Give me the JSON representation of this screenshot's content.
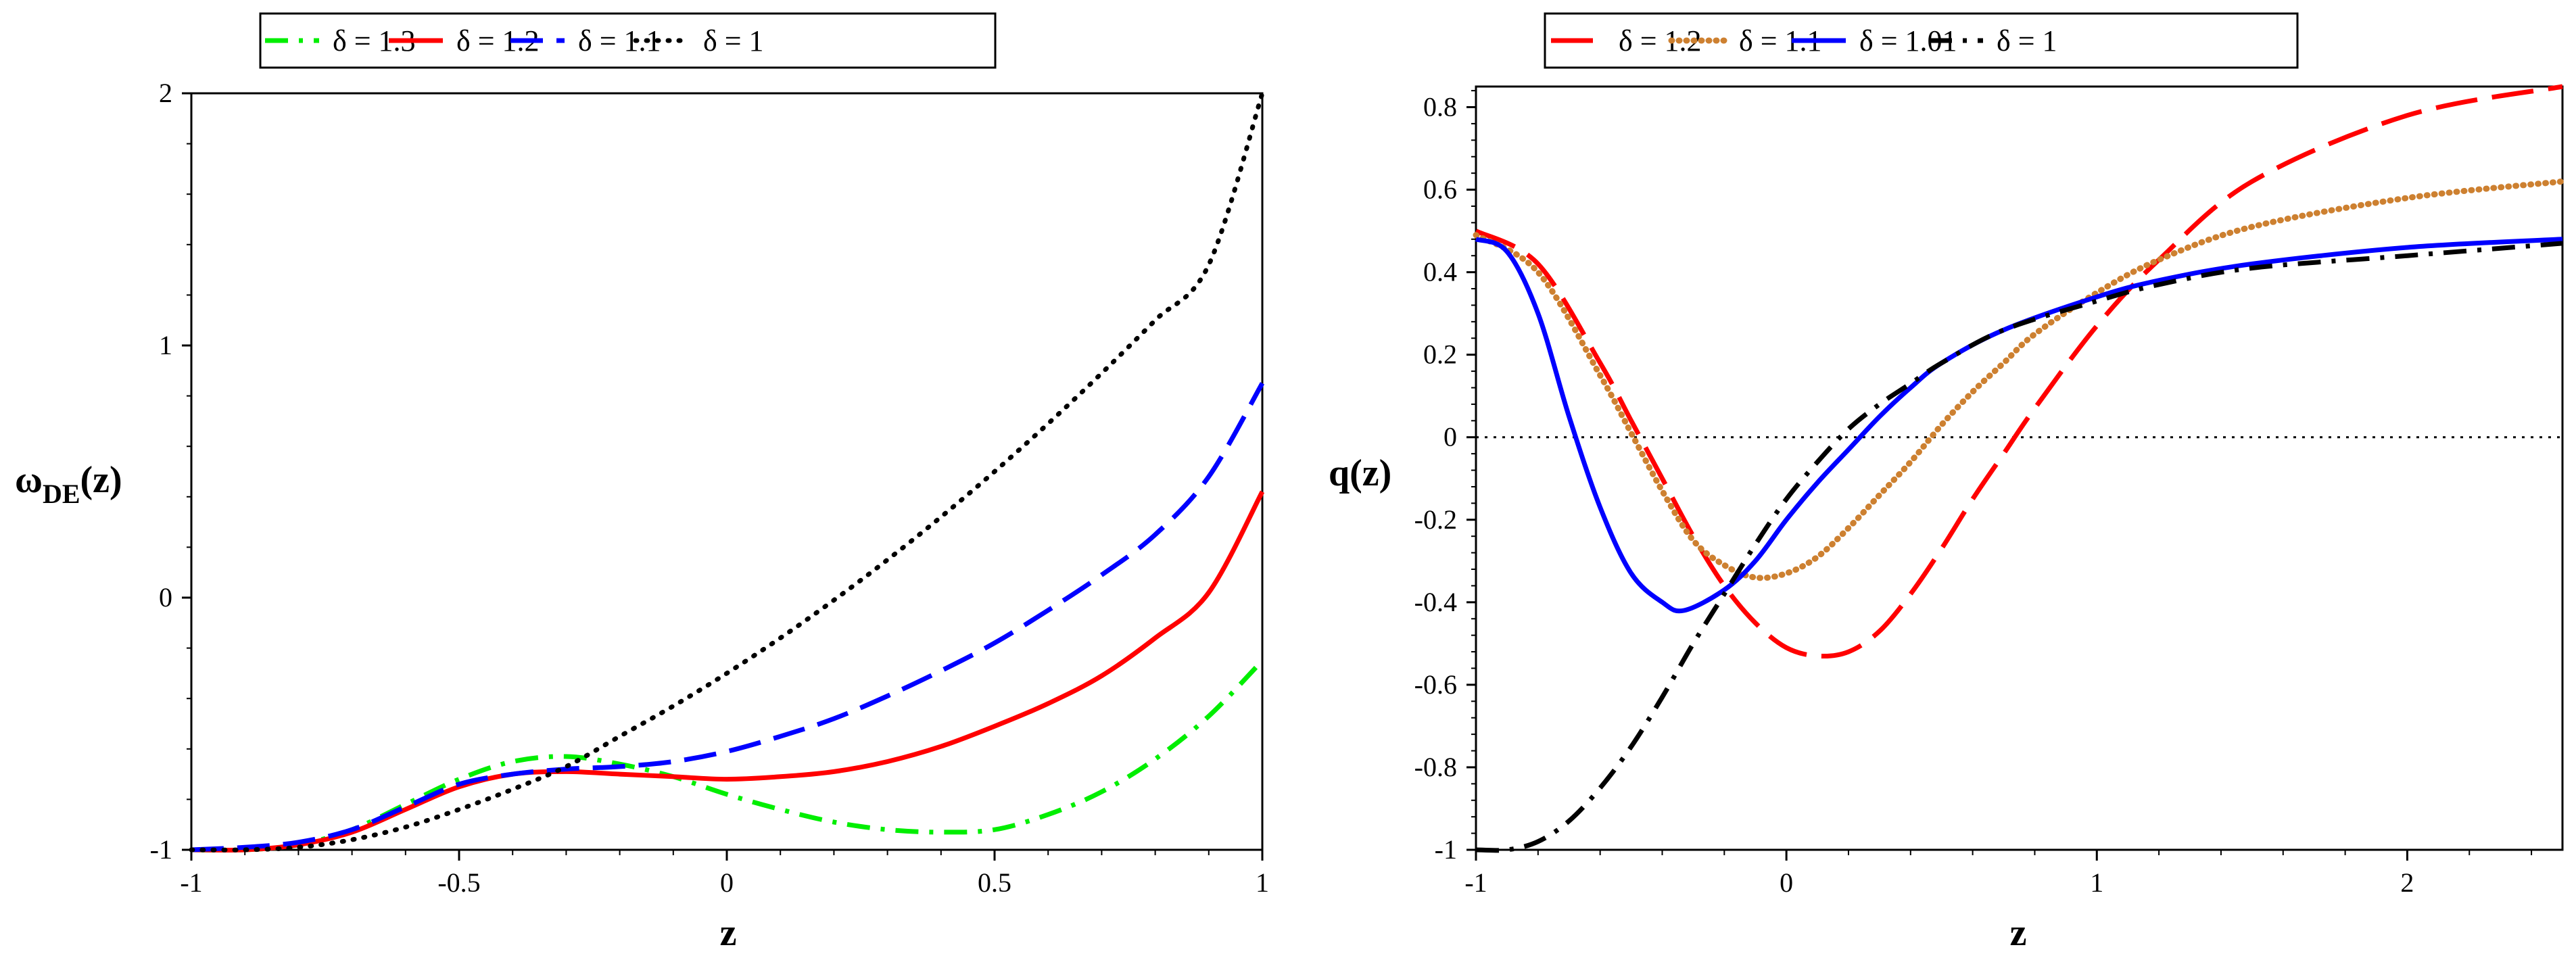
{
  "chart_data": [
    {
      "type": "line",
      "xlabel": "z",
      "ylabel": "ω",
      "ylabel_sub": "DE",
      "ylabel_tail": "(z)",
      "xlim": [
        -1,
        1
      ],
      "ylim": [
        -1,
        2
      ],
      "xticks": [
        -1,
        -0.5,
        0,
        0.5,
        1
      ],
      "xtick_labels": [
        "-1",
        "-0.5",
        "0",
        "0.5",
        "1"
      ],
      "yticks": [
        -1,
        0,
        1,
        2
      ],
      "ytick_labels": [
        "-1",
        "0",
        "1",
        "2"
      ],
      "legend_location": "top-center",
      "series": [
        {
          "name": "δ = 1.3",
          "color": "#00ee00",
          "style": "dashdot",
          "x": [
            -1,
            -0.9,
            -0.8,
            -0.7,
            -0.6,
            -0.5,
            -0.4,
            -0.3,
            -0.2,
            -0.1,
            0,
            0.1,
            0.2,
            0.3,
            0.4,
            0.5,
            0.6,
            0.7,
            0.8,
            0.9,
            1
          ],
          "y": [
            -1,
            -1,
            -0.98,
            -0.92,
            -0.82,
            -0.72,
            -0.65,
            -0.63,
            -0.66,
            -0.71,
            -0.78,
            -0.84,
            -0.89,
            -0.92,
            -0.93,
            -0.92,
            -0.86,
            -0.77,
            -0.64,
            -0.47,
            -0.25
          ]
        },
        {
          "name": "δ = 1.2",
          "color": "#ff0000",
          "style": "solid",
          "x": [
            -1,
            -0.9,
            -0.8,
            -0.7,
            -0.6,
            -0.5,
            -0.4,
            -0.3,
            -0.2,
            -0.1,
            0,
            0.1,
            0.2,
            0.3,
            0.4,
            0.5,
            0.6,
            0.7,
            0.8,
            0.9,
            1
          ],
          "y": [
            -1,
            -1,
            -0.98,
            -0.93,
            -0.84,
            -0.75,
            -0.7,
            -0.69,
            -0.7,
            -0.71,
            -0.72,
            -0.71,
            -0.69,
            -0.65,
            -0.59,
            -0.51,
            -0.42,
            -0.31,
            -0.16,
            0.02,
            0.42
          ]
        },
        {
          "name": "δ = 1.1",
          "color": "#0000ff",
          "style": "dash",
          "x": [
            -1,
            -0.9,
            -0.8,
            -0.7,
            -0.6,
            -0.5,
            -0.4,
            -0.3,
            -0.2,
            -0.1,
            0,
            0.1,
            0.2,
            0.3,
            0.4,
            0.5,
            0.6,
            0.7,
            0.8,
            0.9,
            1
          ],
          "y": [
            -1,
            -0.99,
            -0.97,
            -0.92,
            -0.83,
            -0.74,
            -0.7,
            -0.68,
            -0.67,
            -0.65,
            -0.61,
            -0.55,
            -0.48,
            -0.39,
            -0.29,
            -0.18,
            -0.05,
            0.09,
            0.25,
            0.48,
            0.85
          ]
        },
        {
          "name": "δ = 1",
          "color": "#000000",
          "style": "dot",
          "x": [
            -1,
            -0.9,
            -0.8,
            -0.7,
            -0.6,
            -0.5,
            -0.4,
            -0.3,
            -0.2,
            -0.1,
            0,
            0.1,
            0.2,
            0.3,
            0.4,
            0.5,
            0.6,
            0.7,
            0.8,
            0.9,
            1
          ],
          "y": [
            -1,
            -1,
            -0.99,
            -0.96,
            -0.91,
            -0.84,
            -0.76,
            -0.67,
            -0.55,
            -0.43,
            -0.3,
            -0.16,
            -0.01,
            0.15,
            0.32,
            0.5,
            0.69,
            0.89,
            1.1,
            1.32,
            2
          ]
        }
      ]
    },
    {
      "type": "line",
      "xlabel": "z",
      "ylabel": "q(z)",
      "xlim": [
        -1,
        2.5
      ],
      "ylim": [
        -1,
        0.85
      ],
      "xticks": [
        -1,
        0,
        1,
        2
      ],
      "xtick_labels": [
        "-1",
        "0",
        "1",
        "2"
      ],
      "yticks": [
        -1,
        -0.8,
        -0.6,
        -0.4,
        -0.2,
        0,
        0.2,
        0.4,
        0.6,
        0.8
      ],
      "ytick_labels": [
        "-1",
        "-0.8",
        "-0.6",
        "-0.4",
        "-0.2",
        "0",
        "0.2",
        "0.4",
        "0.6",
        "0.8"
      ],
      "reference_line_y": 0,
      "legend_location": "top-center",
      "series": [
        {
          "name": "δ = 1.2",
          "color": "#ff0000",
          "style": "longdash",
          "x": [
            -1,
            -0.8,
            -0.6,
            -0.5,
            -0.4,
            -0.3,
            -0.2,
            -0.1,
            0,
            0.1,
            0.2,
            0.3,
            0.4,
            0.5,
            0.6,
            0.7,
            0.8,
            1,
            1.2,
            1.5,
            2,
            2.5
          ],
          "y": [
            0.5,
            0.42,
            0.18,
            0.04,
            -0.1,
            -0.24,
            -0.36,
            -0.45,
            -0.51,
            -0.53,
            -0.52,
            -0.47,
            -0.38,
            -0.27,
            -0.15,
            -0.04,
            0.07,
            0.27,
            0.43,
            0.62,
            0.78,
            0.85
          ]
        },
        {
          "name": "δ = 1.1",
          "color": "#cd8030",
          "style": "dotted",
          "x": [
            -1,
            -0.8,
            -0.6,
            -0.5,
            -0.4,
            -0.3,
            -0.2,
            -0.1,
            0,
            0.1,
            0.2,
            0.3,
            0.4,
            0.5,
            0.6,
            0.7,
            0.8,
            1,
            1.2,
            1.5,
            2,
            2.5
          ],
          "y": [
            0.49,
            0.4,
            0.15,
            0.01,
            -0.13,
            -0.25,
            -0.31,
            -0.34,
            -0.33,
            -0.29,
            -0.22,
            -0.14,
            -0.06,
            0.03,
            0.11,
            0.18,
            0.25,
            0.35,
            0.43,
            0.51,
            0.58,
            0.62
          ]
        },
        {
          "name": "δ = 1.01",
          "color": "#0000ff",
          "style": "solid",
          "x": [
            -1,
            -0.9,
            -0.8,
            -0.7,
            -0.6,
            -0.5,
            -0.4,
            -0.33,
            -0.2,
            -0.1,
            0,
            0.1,
            0.2,
            0.3,
            0.4,
            0.5,
            0.7,
            1,
            1.2,
            1.5,
            2,
            2.5
          ],
          "y": [
            0.48,
            0.45,
            0.3,
            0.05,
            -0.17,
            -0.33,
            -0.4,
            -0.42,
            -0.37,
            -0.3,
            -0.2,
            -0.11,
            -0.03,
            0.05,
            0.12,
            0.18,
            0.26,
            0.34,
            0.38,
            0.42,
            0.46,
            0.48
          ]
        },
        {
          "name": "δ = 1",
          "color": "#000000",
          "style": "dashdot",
          "x": [
            -1,
            -0.9,
            -0.8,
            -0.7,
            -0.6,
            -0.5,
            -0.4,
            -0.3,
            -0.2,
            -0.1,
            0,
            0.1,
            0.2,
            0.3,
            0.4,
            0.5,
            0.7,
            1,
            1.2,
            1.5,
            2,
            2.5
          ],
          "y": [
            -1,
            -1,
            -0.98,
            -0.93,
            -0.85,
            -0.75,
            -0.63,
            -0.5,
            -0.38,
            -0.26,
            -0.15,
            -0.06,
            0.02,
            0.08,
            0.13,
            0.18,
            0.26,
            0.33,
            0.37,
            0.41,
            0.44,
            0.47
          ]
        }
      ]
    }
  ]
}
